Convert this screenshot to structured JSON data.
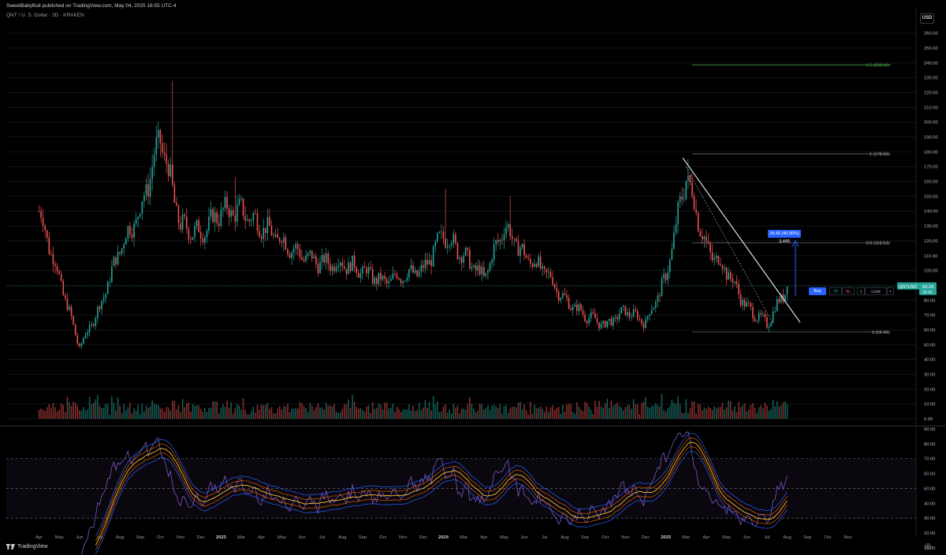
{
  "header": {
    "publisher": "SweetBabyBull published on TradingView.com, May 04, 2025 16:55 UTC-4",
    "symbol_info": "QNT / U. S. Dollar · 3D · KRAKEN",
    "currency_button": "USD"
  },
  "footer": {
    "brand": "TradingView"
  },
  "order_bar": {
    "buy": "Buy",
    "tp": "TP",
    "sl": "SL",
    "qty": "1",
    "type": "Limit",
    "close": "×"
  },
  "measure": {
    "label": "34.45 (40.90%) 3,445"
  },
  "colors": {
    "up": "#26a69a",
    "down": "#ef5350",
    "rsi": "#7e57c2",
    "fib_top": "#4caf50"
  },
  "price_axis": {
    "ticks": [
      "260.00",
      "250.00",
      "240.00",
      "230.00",
      "220.00",
      "210.00",
      "200.00",
      "190.00",
      "180.00",
      "170.00",
      "160.00",
      "150.00",
      "140.00",
      "130.00",
      "120.00",
      "110.00",
      "100.00",
      "90.00",
      "80.00",
      "70.00",
      "60.00",
      "50.00",
      "40.00",
      "30.00",
      "20.00",
      "10.00",
      "0.00"
    ],
    "last_price_label": "QNTUSD",
    "last_price": "89.29",
    "countdown": "28:45"
  },
  "rsi_axis": {
    "ticks": [
      "90.00",
      "80.00",
      "70.00",
      "60.00",
      "50.00",
      "40.00",
      "30.00",
      "20.00",
      "10.00"
    ]
  },
  "time_axis": {
    "labels": [
      "Apr",
      "May",
      "Jun",
      "Jul",
      "Aug",
      "Sep",
      "Oct",
      "Nov",
      "Dec",
      "2023",
      "Mar",
      "Apr",
      "May",
      "Jun",
      "Jul",
      "Aug",
      "Sep",
      "Oct",
      "Nov",
      "Dec",
      "2024",
      "Mar",
      "Apr",
      "May",
      "Jun",
      "Jul",
      "Aug",
      "Sep",
      "Oct",
      "Nov",
      "Dec",
      "2025",
      "Mar",
      "Apr",
      "May",
      "Jun",
      "Jul",
      "Aug",
      "Sep",
      "Oct",
      "Nov"
    ]
  },
  "fib_levels": [
    {
      "label": "1.5 (238.60)",
      "price": 238.6
    },
    {
      "label": "1 (178.56)",
      "price": 178.56
    },
    {
      "label": "0.5 (118.53)",
      "price": 118.53
    },
    {
      "label": "0 (58.49)",
      "price": 58.49
    }
  ],
  "chart_data": {
    "type": "candlestick",
    "symbol": "QNT / U. S. Dollar",
    "timeframe": "3D",
    "exchange": "KRAKEN",
    "ylim": [
      0,
      265
    ],
    "price_anchors": [
      [
        "Apr 2022",
        140
      ],
      [
        "May 2022",
        95
      ],
      [
        "Jun 2022",
        48
      ],
      [
        "Jul 2022",
        75
      ],
      [
        "Aug 2022",
        115
      ],
      [
        "Sep 2022",
        140
      ],
      [
        "Oct 2022",
        190
      ],
      [
        "Nov 2022",
        130
      ],
      [
        "Dec 2022",
        125
      ],
      [
        "Jan 2023",
        140
      ],
      [
        "Feb 2023",
        140
      ],
      [
        "Mar 2023",
        130
      ],
      [
        "Apr 2023",
        120
      ],
      [
        "May 2023",
        110
      ],
      [
        "Jun 2023",
        105
      ],
      [
        "Jul 2023",
        105
      ],
      [
        "Aug 2023",
        100
      ],
      [
        "Sep 2023",
        92
      ],
      [
        "Oct 2023",
        97
      ],
      [
        "Nov 2023",
        100
      ],
      [
        "Dec 2023",
        125
      ],
      [
        "Jan 2024",
        110
      ],
      [
        "Feb 2024",
        95
      ],
      [
        "Mar 2024",
        130
      ],
      [
        "Apr 2024",
        110
      ],
      [
        "May 2024",
        100
      ],
      [
        "Jun 2024",
        80
      ],
      [
        "Jul 2024",
        70
      ],
      [
        "Aug 2024",
        63
      ],
      [
        "Sep 2024",
        73
      ],
      [
        "Oct 2024",
        65
      ],
      [
        "Nov 2024",
        95
      ],
      [
        "Dec 2024",
        165
      ],
      [
        "Jan 2025",
        115
      ],
      [
        "Feb 2025",
        100
      ],
      [
        "Mar 2025",
        75
      ],
      [
        "Apr 2025",
        64
      ],
      [
        "May 2025",
        89.29
      ]
    ],
    "last_price": 89.29,
    "rsi_length": 14,
    "rsi_ylim": [
      0,
      95
    ]
  }
}
